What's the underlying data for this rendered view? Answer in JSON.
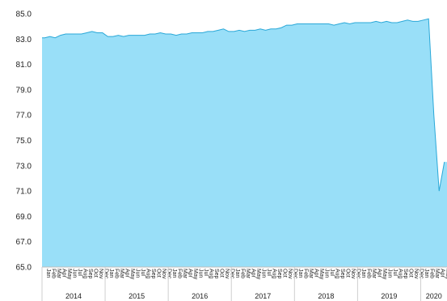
{
  "chart_data": {
    "type": "area",
    "title": "",
    "xlabel": "",
    "ylabel": "",
    "ylim": [
      65.0,
      85.0
    ],
    "y_ticks": [
      "65.0",
      "67.0",
      "69.0",
      "71.0",
      "73.0",
      "75.0",
      "77.0",
      "79.0",
      "81.0",
      "83.0",
      "85.0"
    ],
    "grid": false,
    "legend": "none",
    "fill_color": "#99dff8",
    "line_color": "#2aa8d8",
    "month_labels": [
      "Jan",
      "Feb",
      "Mar",
      "Apr",
      "May",
      "Jun",
      "Jul",
      "Aug",
      "Sep",
      "Oct",
      "Nov",
      "Dec"
    ],
    "years": [
      "2014",
      "2015",
      "2016",
      "2017",
      "2018",
      "2019",
      "2020"
    ],
    "x": [
      "2014-01",
      "2014-02",
      "2014-03",
      "2014-04",
      "2014-05",
      "2014-06",
      "2014-07",
      "2014-08",
      "2014-09",
      "2014-10",
      "2014-11",
      "2014-12",
      "2015-01",
      "2015-02",
      "2015-03",
      "2015-04",
      "2015-05",
      "2015-06",
      "2015-07",
      "2015-08",
      "2015-09",
      "2015-10",
      "2015-11",
      "2015-12",
      "2016-01",
      "2016-02",
      "2016-03",
      "2016-04",
      "2016-05",
      "2016-06",
      "2016-07",
      "2016-08",
      "2016-09",
      "2016-10",
      "2016-11",
      "2016-12",
      "2017-01",
      "2017-02",
      "2017-03",
      "2017-04",
      "2017-05",
      "2017-06",
      "2017-07",
      "2017-08",
      "2017-09",
      "2017-10",
      "2017-11",
      "2017-12",
      "2018-01",
      "2018-02",
      "2018-03",
      "2018-04",
      "2018-05",
      "2018-06",
      "2018-07",
      "2018-08",
      "2018-09",
      "2018-10",
      "2018-11",
      "2018-12",
      "2019-01",
      "2019-02",
      "2019-03",
      "2019-04",
      "2019-05",
      "2019-06",
      "2019-07",
      "2019-08",
      "2019-09",
      "2019-10",
      "2019-11",
      "2019-12",
      "2020-01",
      "2020-02",
      "2020-03",
      "2020-04",
      "2020-05"
    ],
    "values": [
      83.1,
      83.2,
      83.1,
      83.3,
      83.4,
      83.4,
      83.4,
      83.4,
      83.5,
      83.6,
      83.5,
      83.5,
      83.2,
      83.2,
      83.3,
      83.2,
      83.3,
      83.3,
      83.3,
      83.3,
      83.4,
      83.4,
      83.5,
      83.4,
      83.4,
      83.3,
      83.4,
      83.4,
      83.5,
      83.5,
      83.5,
      83.6,
      83.6,
      83.7,
      83.8,
      83.6,
      83.6,
      83.7,
      83.6,
      83.7,
      83.7,
      83.8,
      83.7,
      83.8,
      83.8,
      83.9,
      84.1,
      84.1,
      84.2,
      84.2,
      84.2,
      84.2,
      84.2,
      84.2,
      84.2,
      84.1,
      84.2,
      84.3,
      84.2,
      84.3,
      84.3,
      84.3,
      84.3,
      84.4,
      84.3,
      84.4,
      84.3,
      84.3,
      84.4,
      84.5,
      84.4,
      84.4,
      84.5,
      84.6,
      77.0,
      71.0,
      73.3
    ]
  }
}
